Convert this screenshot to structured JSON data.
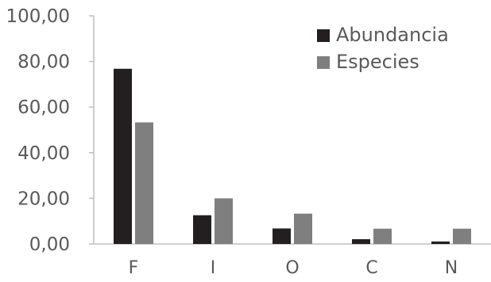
{
  "chart_data": {
    "type": "bar",
    "categories": [
      "F",
      "I",
      "O",
      "C",
      "N"
    ],
    "series": [
      {
        "name": "Abundancia",
        "values": [
          76.8,
          12.6,
          6.8,
          2.1,
          1.1
        ],
        "color": "#231f20"
      },
      {
        "name": "Especies",
        "values": [
          53.3,
          20.0,
          13.3,
          6.7,
          6.7
        ],
        "color": "#7f7f7f"
      }
    ],
    "ylim": [
      0,
      100
    ],
    "yticks": [
      "0,00",
      "20,00",
      "40,00",
      "60,00",
      "80,00",
      "100,00"
    ],
    "ytick_values": [
      0,
      20,
      40,
      60,
      80,
      100
    ],
    "grid": false,
    "legend": "top-right",
    "title": "",
    "xlabel": "",
    "ylabel": ""
  }
}
